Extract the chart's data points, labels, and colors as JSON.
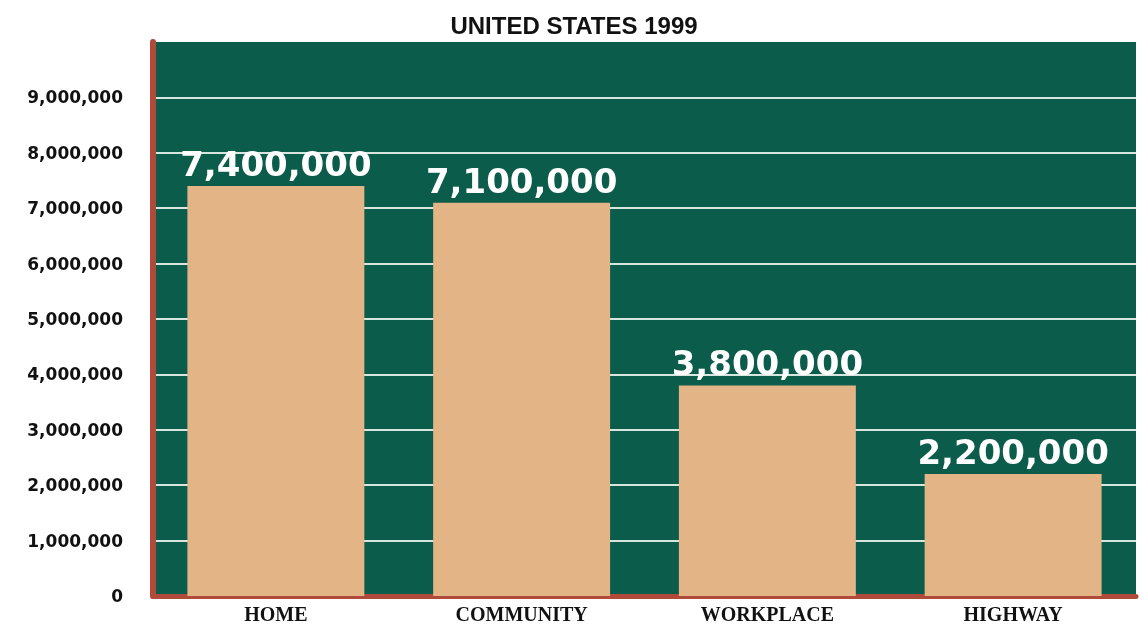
{
  "chart_data": {
    "type": "bar",
    "title": "UNITED STATES 1999",
    "categories": [
      "HOME",
      "COMMUNITY",
      "WORKPLACE",
      "HIGHWAY"
    ],
    "values": [
      7400000,
      7100000,
      3800000,
      2200000
    ],
    "color": "#e3b586",
    "value_labels": [
      "7,400,000",
      "7,100,000",
      "3,800,000",
      "2,200,000"
    ],
    "ylim": [
      0,
      10000000
    ],
    "yticks": [
      0,
      {
        "value": 1000000,
        "label": "1,000,000"
      },
      {
        "value": 2000000,
        "label": "2,000,000"
      },
      {
        "value": 3000000,
        "label": "3,000,000"
      },
      {
        "value": 4000000,
        "label": "4,000,000"
      },
      {
        "value": 5000000,
        "label": "5,000,000"
      },
      {
        "value": 6000000,
        "label": "6,000,000"
      },
      {
        "value": 7000000,
        "label": "7,000,000"
      },
      {
        "value": 8000000,
        "label": "8,000,000"
      },
      {
        "value": 9000000,
        "label": "9,000,000"
      }
    ],
    "grid": "y"
  }
}
